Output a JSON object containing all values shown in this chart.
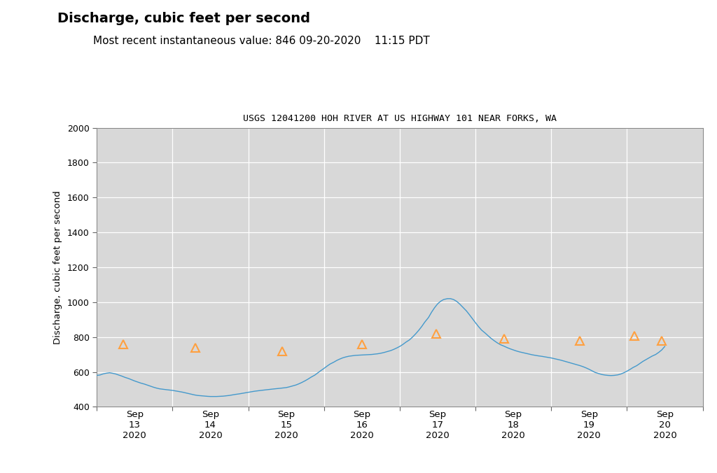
{
  "title_bold": "Discharge, cubic feet per second",
  "title_sub": "Most recent instantaneous value: 846 09-20-2020    11:15 PDT",
  "chart_title": "USGS 12041200 HOH RIVER AT US HIGHWAY 101 NEAR FORKS, WA",
  "ylabel": "Discharge, cubic feet per second",
  "ylim": [
    400,
    2000
  ],
  "yticks": [
    400,
    600,
    800,
    1000,
    1200,
    1400,
    1600,
    1800,
    2000
  ],
  "line_color": "#4499CC",
  "triangle_color": "#FFA040",
  "bg_color": "#ffffff",
  "plot_bg_color": "#d8d8d8",
  "grid_color": "#ffffff",
  "flow_x": [
    0.0,
    0.04,
    0.08,
    0.12,
    0.17,
    0.21,
    0.25,
    0.29,
    0.33,
    0.37,
    0.42,
    0.46,
    0.5,
    0.54,
    0.58,
    0.63,
    0.67,
    0.71,
    0.75,
    0.79,
    0.83,
    0.88,
    0.92,
    0.96,
    1.0,
    1.04,
    1.08,
    1.13,
    1.17,
    1.21,
    1.25,
    1.29,
    1.33,
    1.38,
    1.42,
    1.46,
    1.5,
    1.54,
    1.58,
    1.63,
    1.67,
    1.71,
    1.75,
    1.79,
    1.83,
    1.88,
    1.92,
    1.96,
    2.0,
    2.04,
    2.08,
    2.13,
    2.17,
    2.21,
    2.25,
    2.29,
    2.33,
    2.38,
    2.42,
    2.46,
    2.5,
    2.54,
    2.58,
    2.63,
    2.67,
    2.71,
    2.75,
    2.79,
    2.83,
    2.88,
    2.92,
    2.96,
    3.0,
    3.04,
    3.08,
    3.13,
    3.17,
    3.21,
    3.25,
    3.29,
    3.33,
    3.38,
    3.42,
    3.46,
    3.5,
    3.54,
    3.58,
    3.63,
    3.67,
    3.71,
    3.75,
    3.79,
    3.83,
    3.88,
    3.92,
    3.96,
    4.0,
    4.04,
    4.08,
    4.13,
    4.17,
    4.21,
    4.25,
    4.29,
    4.33,
    4.38,
    4.42,
    4.46,
    4.5,
    4.54,
    4.58,
    4.63,
    4.67,
    4.71,
    4.75,
    4.79,
    4.83,
    4.88,
    4.92,
    4.96,
    5.0,
    5.04,
    5.08,
    5.13,
    5.17,
    5.21,
    5.25,
    5.29,
    5.33,
    5.38,
    5.42,
    5.46,
    5.5,
    5.54,
    5.58,
    5.63,
    5.67,
    5.71,
    5.75,
    5.79,
    5.83,
    5.88,
    5.92,
    5.96,
    6.0,
    6.04,
    6.08,
    6.13,
    6.17,
    6.21,
    6.25,
    6.29,
    6.33,
    6.38,
    6.42,
    6.46,
    6.5,
    6.54,
    6.58,
    6.63,
    6.67,
    6.71,
    6.75,
    6.79,
    6.83,
    6.88,
    6.92,
    6.96,
    7.0,
    7.04,
    7.08,
    7.13,
    7.17,
    7.21,
    7.25,
    7.29,
    7.33,
    7.38,
    7.42,
    7.46,
    7.5
  ],
  "flow_y": [
    580,
    582,
    588,
    592,
    595,
    592,
    588,
    582,
    576,
    569,
    562,
    555,
    548,
    542,
    536,
    530,
    524,
    518,
    512,
    507,
    503,
    500,
    498,
    496,
    494,
    491,
    488,
    484,
    480,
    476,
    472,
    468,
    465,
    463,
    461,
    460,
    459,
    459,
    459,
    460,
    461,
    463,
    465,
    468,
    471,
    474,
    477,
    480,
    483,
    486,
    489,
    492,
    494,
    496,
    498,
    500,
    502,
    504,
    506,
    508,
    510,
    514,
    519,
    525,
    532,
    540,
    549,
    559,
    570,
    582,
    595,
    608,
    620,
    633,
    645,
    656,
    666,
    674,
    681,
    686,
    690,
    693,
    695,
    696,
    697,
    698,
    699,
    700,
    702,
    704,
    707,
    711,
    716,
    722,
    729,
    737,
    746,
    757,
    770,
    784,
    800,
    818,
    838,
    860,
    885,
    912,
    942,
    968,
    990,
    1005,
    1015,
    1020,
    1020,
    1015,
    1005,
    990,
    972,
    950,
    928,
    905,
    882,
    860,
    840,
    822,
    806,
    791,
    778,
    766,
    756,
    747,
    739,
    732,
    726,
    720,
    715,
    710,
    706,
    702,
    698,
    695,
    692,
    689,
    686,
    683,
    680,
    676,
    672,
    667,
    662,
    657,
    652,
    647,
    642,
    636,
    630,
    623,
    615,
    606,
    597,
    590,
    585,
    582,
    580,
    579,
    580,
    583,
    588,
    595,
    604,
    614,
    625,
    636,
    648,
    660,
    670,
    680,
    690,
    700,
    712,
    726,
    746
  ],
  "triangle_x": [
    0.35,
    1.3,
    2.45,
    3.5,
    4.48,
    5.38,
    6.38,
    7.1,
    7.46
  ],
  "triangle_y": [
    760,
    738,
    720,
    757,
    820,
    790,
    780,
    808,
    778
  ]
}
